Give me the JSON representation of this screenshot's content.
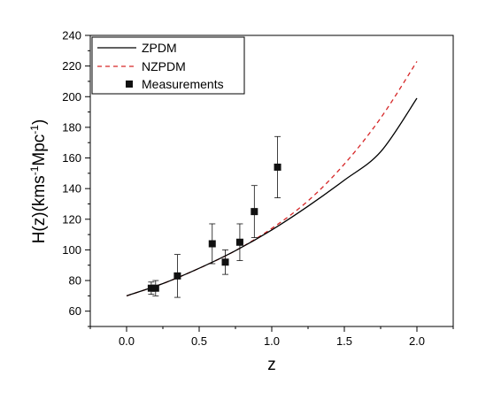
{
  "chart_data": {
    "type": "line",
    "title": "",
    "xlabel": "z",
    "ylabel_parts": {
      "pre": "H(z)(kms",
      "sup1": "-1",
      "mid": "Mpc",
      "sup2": "-1",
      "post": ")"
    },
    "xlim": [
      -0.25,
      2.25
    ],
    "ylim": [
      50,
      240
    ],
    "x_ticks": [
      "0.0",
      "0.5",
      "1.0",
      "1.5",
      "2.0"
    ],
    "x_tick_values": [
      0.0,
      0.5,
      1.0,
      1.5,
      2.0
    ],
    "y_ticks": [
      "60",
      "80",
      "100",
      "120",
      "140",
      "160",
      "180",
      "200",
      "220",
      "240"
    ],
    "y_tick_values": [
      60,
      80,
      100,
      120,
      140,
      160,
      180,
      200,
      220,
      240
    ],
    "grid": false,
    "legend_position": "top-left",
    "series": [
      {
        "name": "ZPDM",
        "style": "solid",
        "color": "#000000",
        "x": [
          0.0,
          0.25,
          0.5,
          0.75,
          1.0,
          1.25,
          1.5,
          1.75,
          2.0
        ],
        "y": [
          70,
          78,
          88,
          99.5,
          113,
          128.5,
          145.5,
          164,
          199
        ]
      },
      {
        "name": "NZPDM",
        "style": "dashed",
        "color": "#d62728",
        "x": [
          0.0,
          0.25,
          0.5,
          0.75,
          1.0,
          1.25,
          1.5,
          1.75,
          2.0
        ],
        "y": [
          70,
          78,
          88,
          99.5,
          114,
          132,
          156,
          186,
          223
        ]
      },
      {
        "name": "Measurements",
        "style": "markers",
        "color": "#111111",
        "points": [
          {
            "x": 0.17,
            "y": 75,
            "err": 4
          },
          {
            "x": 0.2,
            "y": 75,
            "err": 5
          },
          {
            "x": 0.35,
            "y": 83,
            "err": 14
          },
          {
            "x": 0.59,
            "y": 104,
            "err": 13
          },
          {
            "x": 0.68,
            "y": 92,
            "err": 8
          },
          {
            "x": 0.78,
            "y": 105,
            "err": 12
          },
          {
            "x": 0.88,
            "y": 125,
            "err": 17
          },
          {
            "x": 1.04,
            "y": 154,
            "err": 20
          }
        ]
      }
    ]
  }
}
